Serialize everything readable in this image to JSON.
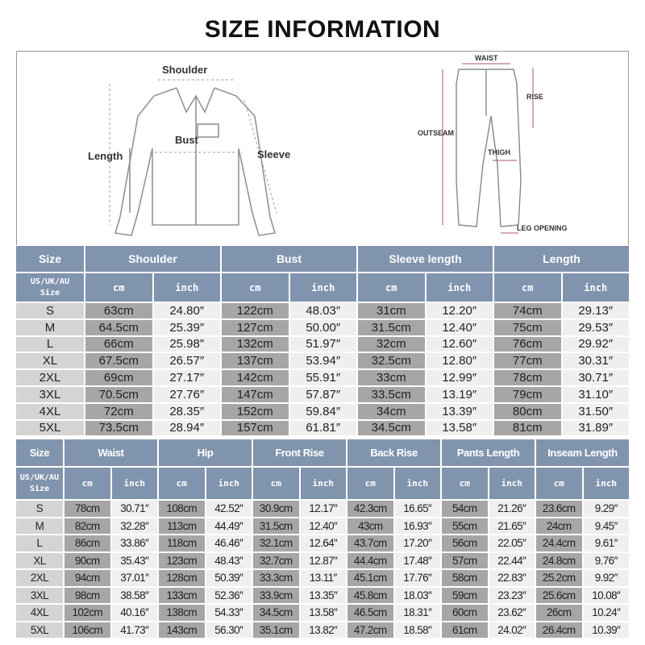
{
  "title": "SIZE INFORMATION",
  "diagram": {
    "shirt_labels": {
      "shoulder": "Shoulder",
      "bust": "Bust",
      "length": "Length",
      "sleeve": "Sleeve"
    },
    "pants_labels": {
      "waist": "WAIST",
      "rise": "RISE",
      "outseam": "OUTSEAM",
      "thigh": "THIGH",
      "leg_opening": "LEG OPENING"
    }
  },
  "top_table": {
    "size_header": "Size",
    "size_sub_header": [
      "US/UK/AU",
      "Size"
    ],
    "groups": [
      "Shoulder",
      "Bust",
      "Sleeve length",
      "Length"
    ],
    "units": [
      "cm",
      "inch"
    ],
    "rows": [
      [
        "S",
        "63cm",
        "24.80″",
        "122cm",
        "48.03″",
        "31cm",
        "12.20″",
        "74cm",
        "29.13″"
      ],
      [
        "M",
        "64.5cm",
        "25.39″",
        "127cm",
        "50.00″",
        "31.5cm",
        "12.40″",
        "75cm",
        "29.53″"
      ],
      [
        "L",
        "66cm",
        "25.98″",
        "132cm",
        "51.97″",
        "32cm",
        "12.60″",
        "76cm",
        "29.92″"
      ],
      [
        "XL",
        "67.5cm",
        "26.57″",
        "137cm",
        "53.94″",
        "32.5cm",
        "12.80″",
        "77cm",
        "30.31″"
      ],
      [
        "2XL",
        "69cm",
        "27.17″",
        "142cm",
        "55.91″",
        "33cm",
        "12.99″",
        "78cm",
        "30.71″"
      ],
      [
        "3XL",
        "70.5cm",
        "27.76″",
        "147cm",
        "57.87″",
        "33.5cm",
        "13.19″",
        "79cm",
        "31.10″"
      ],
      [
        "4XL",
        "72cm",
        "28.35″",
        "152cm",
        "59.84″",
        "34cm",
        "13.39″",
        "80cm",
        "31.50″"
      ],
      [
        "5XL",
        "73.5cm",
        "28.94″",
        "157cm",
        "61.81″",
        "34.5cm",
        "13.58″",
        "81cm",
        "31.89″"
      ]
    ]
  },
  "bottom_table": {
    "size_header": "Size",
    "size_sub_header": [
      "US/UK/AU",
      "Size"
    ],
    "groups": [
      "Waist",
      "Hip",
      "Front Rise",
      "Back Rise",
      "Pants Length",
      "Inseam Length"
    ],
    "units": [
      "cm",
      "inch"
    ],
    "rows": [
      [
        "S",
        "78cm",
        "30.71″",
        "108cm",
        "42.52″",
        "30.9cm",
        "12.17″",
        "42.3cm",
        "16.65″",
        "54cm",
        "21.26″",
        "23.6cm",
        "9.29″"
      ],
      [
        "M",
        "82cm",
        "32.28″",
        "113cm",
        "44.49″",
        "31.5cm",
        "12.40″",
        "43cm",
        "16.93″",
        "55cm",
        "21.65″",
        "24cm",
        "9.45″"
      ],
      [
        "L",
        "86cm",
        "33.86″",
        "118cm",
        "46.46″",
        "32.1cm",
        "12.64″",
        "43.7cm",
        "17.20″",
        "56cm",
        "22.05″",
        "24.4cm",
        "9.61″"
      ],
      [
        "XL",
        "90cm",
        "35.43″",
        "123cm",
        "48.43″",
        "32.7cm",
        "12.87″",
        "44.4cm",
        "17.48″",
        "57cm",
        "22.44″",
        "24.8cm",
        "9.76″"
      ],
      [
        "2XL",
        "94cm",
        "37.01″",
        "128cm",
        "50.39″",
        "33.3cm",
        "13.11″",
        "45.1cm",
        "17.76″",
        "58cm",
        "22.83″",
        "25.2cm",
        "9.92″"
      ],
      [
        "3XL",
        "98cm",
        "38.58″",
        "133cm",
        "52.36″",
        "33.9cm",
        "13.35″",
        "45.8cm",
        "18.03″",
        "59cm",
        "23.23″",
        "25.6cm",
        "10.08″"
      ],
      [
        "4XL",
        "102cm",
        "40.16″",
        "138cm",
        "54.33″",
        "34.5cm",
        "13.58″",
        "46.5cm",
        "18.31″",
        "60cm",
        "23.62″",
        "26cm",
        "10.24″"
      ],
      [
        "5XL",
        "106cm",
        "41.73″",
        "143cm",
        "56.30″",
        "35.1cm",
        "13.82″",
        "47.2cm",
        "18.58″",
        "61cm",
        "24.02″",
        "26.4cm",
        "10.39″"
      ]
    ]
  },
  "colors": {
    "header": "#8194ae",
    "cm_cell": "#a8a5a5",
    "inch_cell": "#efefef",
    "size_cell": "#d4d4d4"
  }
}
